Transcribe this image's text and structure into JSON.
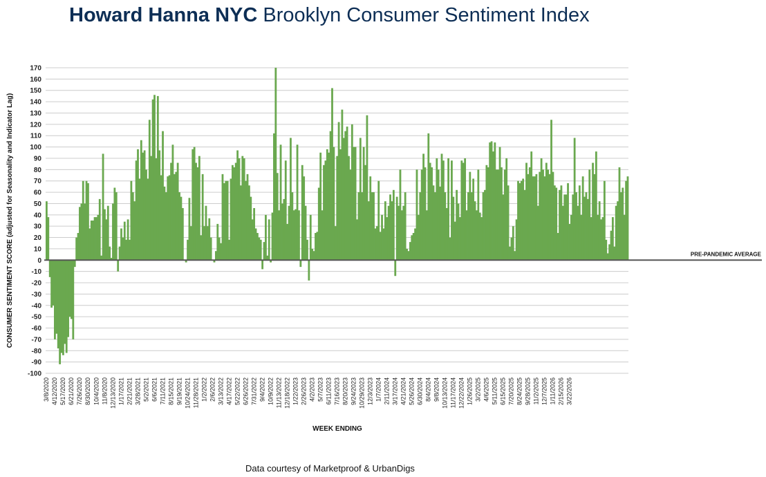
{
  "header": {
    "brand": "Howard Hanna NYC",
    "title": "Brooklyn Consumer Sentiment Index"
  },
  "footer": {
    "credit": "Data courtesy of Marketproof & UrbanDigs"
  },
  "colors": {
    "bar": "#6aa84f",
    "baseline": "#555555",
    "grid": "#cccccc",
    "title": "#0d2e55"
  },
  "chart_data": {
    "type": "bar",
    "title": "Brooklyn Consumer Sentiment Index",
    "xlabel": "WEEK ENDING",
    "ylabel": "CONSUMER SENTIMENT SCORE (adjusted for Seasonality and Indicator Lag)",
    "ylim": [
      -100,
      170
    ],
    "yticks": [
      -100,
      -90,
      -80,
      -70,
      -60,
      -50,
      -40,
      -30,
      -20,
      -10,
      0,
      10,
      20,
      30,
      40,
      50,
      60,
      70,
      80,
      90,
      100,
      110,
      120,
      130,
      140,
      150,
      160,
      170
    ],
    "grid": true,
    "reference_line": {
      "label": "PRE-PANDEMIC AVERAGE",
      "value": 0
    },
    "x_tick_labels": [
      "3/8/2020",
      "4/12/2020",
      "5/17/2020",
      "6/21/2020",
      "7/26/2020",
      "8/30/2020",
      "10/4/2020",
      "11/8/2020",
      "12/13/2020",
      "1/17/2021",
      "2/21/2021",
      "3/28/2021",
      "5/2/2021",
      "6/6/2021",
      "7/11/2021",
      "8/15/2021",
      "9/19/2021",
      "10/24/2021",
      "11/28/2021",
      "1/2/2022",
      "2/6/2022",
      "3/13/2022",
      "4/17/2022",
      "5/22/2022",
      "6/26/2022",
      "7/31/2022",
      "9/4/2022",
      "10/9/2022",
      "11/13/2022",
      "12/18/2022",
      "1/22/2023",
      "2/26/2023",
      "4/2/2023",
      "5/7/2023",
      "6/11/2023",
      "7/16/2023",
      "8/20/2023",
      "9/24/2023",
      "10/29/2023",
      "12/3/2023",
      "1/7/2024",
      "2/11/2024",
      "3/17/2024",
      "4/21/2024",
      "5/26/2024",
      "6/30/2024",
      "8/4/2024",
      "9/8/2024",
      "10/13/2024",
      "11/17/2024",
      "12/22/2024",
      "1/26/2025",
      "3/2/2025",
      "4/6/2025",
      "5/11/2025",
      "6/15/2025",
      "7/20/2025",
      "8/24/2025",
      "9/28/2025",
      "11/2/2025",
      "12/7/2025",
      "1/11/2026",
      "2/15/2026",
      "3/22/2026"
    ],
    "x_tick_every": 5,
    "values": [
      52,
      38,
      -15,
      -42,
      -40,
      -70,
      -65,
      -78,
      -92,
      -82,
      -84,
      -74,
      -82,
      -68,
      -50,
      -52,
      -70,
      -6,
      20,
      24,
      47,
      50,
      70,
      50,
      70,
      68,
      28,
      35,
      35,
      38,
      38,
      40,
      54,
      4,
      94,
      45,
      36,
      48,
      12,
      2,
      50,
      64,
      60,
      -10,
      12,
      28,
      20,
      34,
      18,
      36,
      18,
      70,
      60,
      52,
      88,
      98,
      72,
      106,
      95,
      97,
      80,
      72,
      124,
      92,
      142,
      146,
      90,
      145,
      97,
      75,
      114,
      65,
      60,
      74,
      75,
      86,
      102,
      76,
      78,
      86,
      60,
      56,
      46,
      0,
      -2,
      18,
      55,
      30,
      98,
      100,
      86,
      82,
      92,
      22,
      76,
      30,
      48,
      30,
      37,
      20,
      0,
      -2,
      8,
      32,
      20,
      15,
      76,
      68,
      70,
      70,
      18,
      72,
      84,
      82,
      86,
      97,
      90,
      66,
      92,
      90,
      70,
      76,
      66,
      56,
      36,
      46,
      28,
      24,
      20,
      18,
      -8,
      16,
      40,
      4,
      36,
      -2,
      42,
      112,
      170,
      77,
      44,
      102,
      50,
      54,
      88,
      32,
      48,
      108,
      60,
      44,
      45,
      102,
      44,
      -6,
      84,
      74,
      48,
      18,
      -18,
      40,
      10,
      8,
      24,
      25,
      64,
      95,
      44,
      84,
      88,
      98,
      95,
      114,
      152,
      100,
      30,
      92,
      122,
      98,
      133,
      108,
      114,
      118,
      92,
      80,
      120,
      100,
      100,
      36,
      60,
      108,
      60,
      100,
      84,
      128,
      52,
      74,
      60,
      60,
      28,
      30,
      70,
      25,
      40,
      28,
      52,
      38,
      48,
      58,
      52,
      62,
      -14,
      56,
      48,
      80,
      44,
      48,
      60,
      10,
      8,
      16,
      22,
      24,
      28,
      80,
      40,
      60,
      80,
      94,
      82,
      44,
      112,
      86,
      82,
      66,
      60,
      90,
      80,
      65,
      94,
      88,
      60,
      46,
      90,
      20,
      88,
      56,
      34,
      62,
      50,
      38,
      88,
      86,
      90,
      44,
      60,
      78,
      60,
      72,
      52,
      44,
      80,
      42,
      38,
      60,
      62,
      84,
      82,
      104,
      105,
      96,
      104,
      80,
      80,
      100,
      82,
      58,
      80,
      90,
      66,
      12,
      20,
      30,
      8,
      36,
      70,
      68,
      70,
      72,
      62,
      86,
      76,
      82,
      96,
      74,
      74,
      76,
      48,
      78,
      90,
      80,
      74,
      86,
      80,
      76,
      124,
      78,
      66,
      64,
      24,
      62,
      66,
      48,
      58,
      58,
      68,
      32,
      40,
      58,
      108,
      60,
      48,
      66,
      40,
      74,
      56,
      60,
      54,
      80,
      38,
      86,
      76,
      96,
      40,
      52,
      36,
      38,
      70,
      18,
      6,
      14,
      26,
      38,
      12,
      48,
      52,
      82,
      60,
      64,
      40,
      70,
      74
    ]
  }
}
